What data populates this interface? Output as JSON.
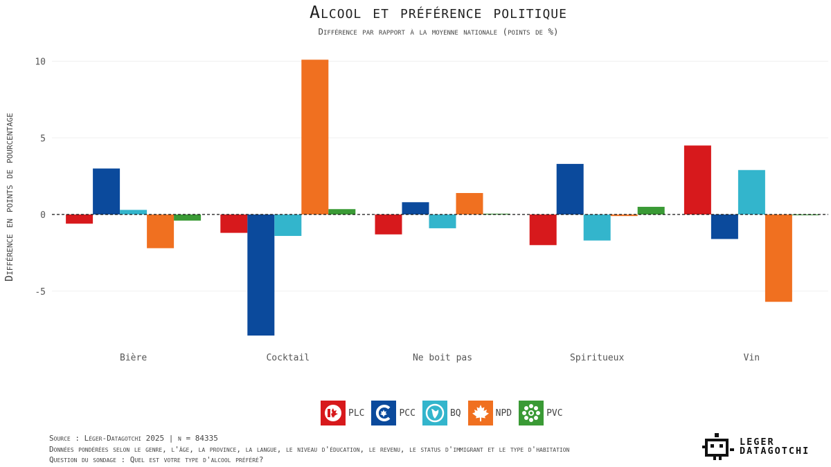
{
  "header": {
    "title": "Alcool et préférence politique",
    "subtitle": "Différence par rapport à la moyenne nationale (points de %)"
  },
  "chart_data": {
    "type": "bar",
    "title": "Alcool et préférence politique",
    "subtitle": "Différence par rapport à la moyenne nationale (points de %)",
    "xlabel": "",
    "ylabel": "Différence en points de pourcentage",
    "ylim": [
      -8,
      10
    ],
    "yticks": [
      -5,
      0,
      5,
      10
    ],
    "categories": [
      "Bière",
      "Cocktail",
      "Ne boit pas",
      "Spiritueux",
      "Vin"
    ],
    "series": [
      {
        "name": "PLC",
        "color": "#d7191c",
        "values": [
          -0.6,
          -1.2,
          -1.3,
          -2.0,
          4.5
        ]
      },
      {
        "name": "PCC",
        "color": "#0b4a9c",
        "values": [
          3.0,
          -7.9,
          0.8,
          3.3,
          -1.6
        ]
      },
      {
        "name": "BQ",
        "color": "#33b5cc",
        "values": [
          0.3,
          -1.4,
          -0.9,
          -1.7,
          2.9
        ]
      },
      {
        "name": "NPD",
        "color": "#f07020",
        "values": [
          -2.2,
          10.1,
          1.4,
          -0.1,
          -5.7
        ]
      },
      {
        "name": "PVC",
        "color": "#3a9a35",
        "values": [
          -0.4,
          0.35,
          0.05,
          0.5,
          -0.05
        ]
      }
    ],
    "zero_line": "dashed",
    "grid": true,
    "legend_position": "bottom"
  },
  "legend": {
    "items": [
      {
        "label": "PLC",
        "icon": "plc-maple-leaf-icon",
        "color": "#d7191c"
      },
      {
        "label": "PCC",
        "icon": "pcc-c-leaf-icon",
        "color": "#0b4a9c"
      },
      {
        "label": "BQ",
        "icon": "bq-fleur-icon",
        "color": "#33b5cc"
      },
      {
        "label": "NPD",
        "icon": "npd-maple-leaf-icon",
        "color": "#f07020"
      },
      {
        "label": "PVC",
        "icon": "pvc-flower-icon",
        "color": "#3a9a35"
      }
    ]
  },
  "footer": {
    "source": "Source : Léger-Datagotchi 2025 | n = 84335",
    "weights": "Données pondérées selon le genre, l'âge, la province, la langue, le niveau d'éducation, le revenu, le status d'immigrant et le type d'habitation",
    "question": "Question du sondage : Quel est votre type d'alcool préféré?"
  },
  "logo": {
    "line1": "LEGER",
    "line2": "DATAGOTCHI"
  }
}
